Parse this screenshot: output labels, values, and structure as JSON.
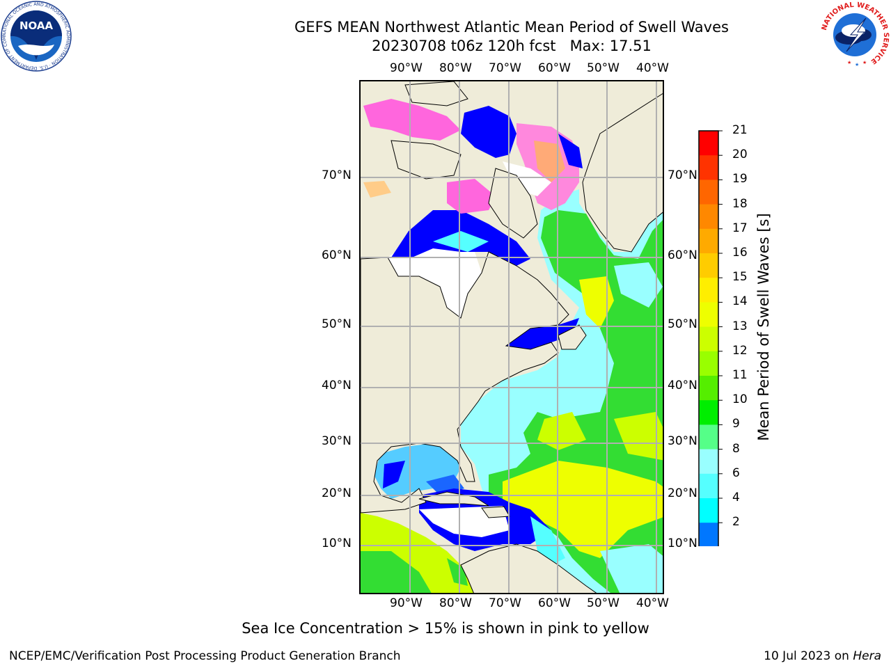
{
  "title": {
    "line1": "GEFS MEAN Northwest Atlantic Mean Period of Swell Waves",
    "line2": "20230708 t06z 120h fcst   Max: 17.51"
  },
  "map": {
    "lon_ticks": [
      "90°W",
      "80°W",
      "70°W",
      "60°W",
      "50°W",
      "40°W"
    ],
    "lat_ticks": [
      "70°N",
      "60°N",
      "50°N",
      "40°N",
      "30°N",
      "20°N",
      "10°N"
    ],
    "colors": {
      "land": "#efecd9",
      "grid": "#b0b0b0",
      "coast": "#000000",
      "nodata": "#ffffff"
    }
  },
  "colorbar": {
    "title": "Mean Period of Swell Waves [s]",
    "levels": [
      "21",
      "20",
      "19",
      "18",
      "17",
      "16",
      "15",
      "14",
      "13",
      "12",
      "11",
      "10",
      "9",
      "8",
      "6",
      "4",
      "2"
    ],
    "colors": [
      "#ff0000",
      "#ff3300",
      "#ff6600",
      "#ff8800",
      "#ffaa00",
      "#ffcc00",
      "#ffee00",
      "#eeff00",
      "#ccff00",
      "#99ff00",
      "#55ee00",
      "#00ee00",
      "#55ff88",
      "#99ffff",
      "#55ffff",
      "#00ffff",
      "#0077ff"
    ],
    "under_color": "#0000ff"
  },
  "caption": "Sea Ice Concentration > 15% is shown in pink to yellow",
  "footer": {
    "left": "NCEP/EMC/Verification Post Processing Product Generation Branch",
    "right_date": "10 Jul 2023 on ",
    "right_host": "Hera"
  },
  "logos": {
    "noaa_text": "NOAA",
    "noaa_ring_text": "NATIONAL OCEANIC AND ATMOSPHERIC ADMINISTRATION · U.S. DEPARTMENT OF COMMERCE",
    "nws_ring_text": "NATIONAL WEATHER SERVICE"
  }
}
